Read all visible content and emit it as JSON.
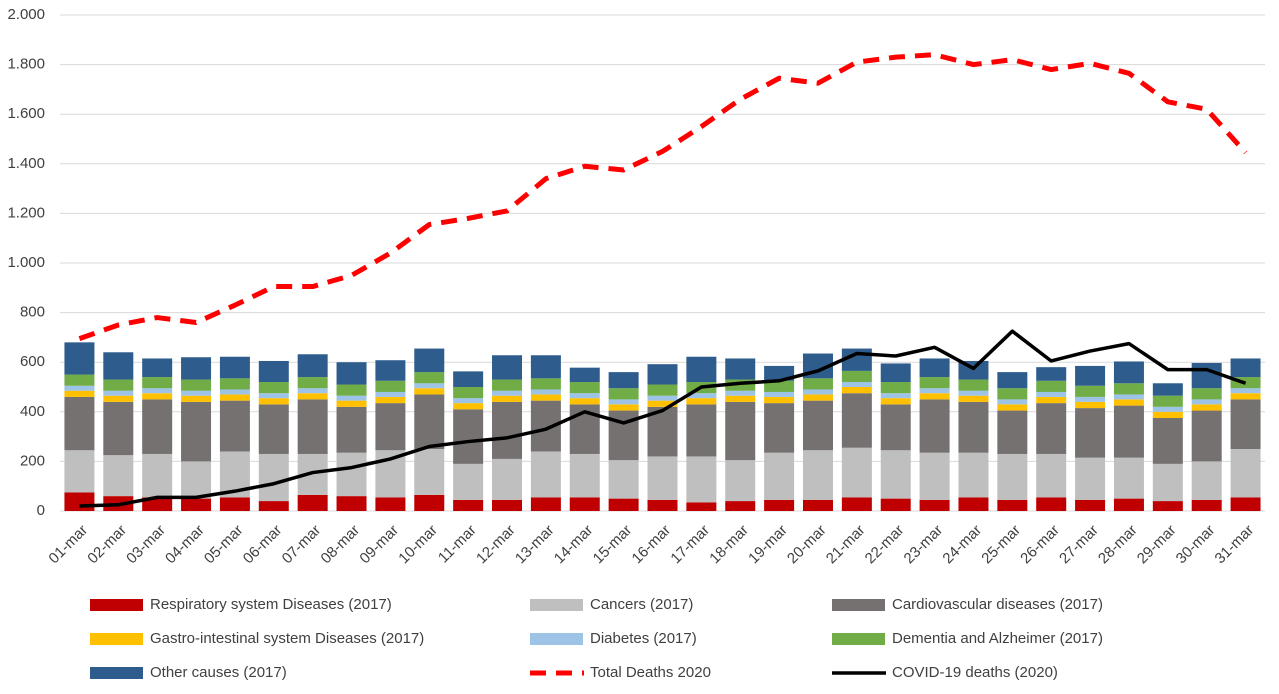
{
  "chart_data": {
    "type": "bar",
    "stacked": true,
    "categories": [
      "01-mar",
      "02-mar",
      "03-mar",
      "04-mar",
      "05-mar",
      "06-mar",
      "07-mar",
      "08-mar",
      "09-mar",
      "10-mar",
      "11-mar",
      "12-mar",
      "13-mar",
      "14-mar",
      "15-mar",
      "16-mar",
      "17-mar",
      "18-mar",
      "19-mar",
      "20-mar",
      "21-mar",
      "22-mar",
      "23-mar",
      "24-mar",
      "25-mar",
      "26-mar",
      "27-mar",
      "28-mar",
      "29-mar",
      "30-mar",
      "31-mar"
    ],
    "ylim": [
      0,
      2000
    ],
    "yticks": [
      0,
      200,
      400,
      600,
      800,
      {
        "value": 1000,
        "label": "1.000"
      },
      {
        "value": 1200,
        "label": "1.200"
      },
      {
        "value": 1400,
        "label": "1.400"
      },
      {
        "value": 1600,
        "label": "1.600"
      },
      {
        "value": 1800,
        "label": "1.800"
      },
      {
        "value": 2000,
        "label": "2.000"
      }
    ],
    "grid": true,
    "series": [
      {
        "name": "Respiratory system Diseases (2017)",
        "color": "#c00000",
        "type": "bar",
        "values": [
          75,
          60,
          55,
          50,
          55,
          40,
          65,
          60,
          55,
          65,
          45,
          45,
          55,
          55,
          50,
          45,
          35,
          40,
          45,
          45,
          55,
          50,
          45,
          55,
          45,
          55,
          45,
          50,
          40,
          45,
          55
        ]
      },
      {
        "name": "Cancers (2017)",
        "color": "#bfbfbf",
        "type": "bar",
        "values": [
          170,
          165,
          175,
          150,
          185,
          190,
          165,
          175,
          190,
          185,
          145,
          165,
          185,
          175,
          155,
          175,
          185,
          165,
          190,
          200,
          200,
          195,
          190,
          180,
          185,
          175,
          170,
          165,
          150,
          155,
          195
        ]
      },
      {
        "name": "Cardiovascular diseases (2017)",
        "color": "#757171",
        "type": "bar",
        "values": [
          215,
          215,
          220,
          240,
          205,
          200,
          220,
          185,
          190,
          220,
          220,
          230,
          205,
          200,
          200,
          200,
          210,
          235,
          200,
          200,
          220,
          185,
          215,
          205,
          175,
          205,
          200,
          210,
          185,
          205,
          200
        ]
      },
      {
        "name": "Gastro-intestinal system Diseases (2017)",
        "color": "#ffc000",
        "type": "bar",
        "values": [
          25,
          25,
          25,
          25,
          25,
          25,
          25,
          25,
          25,
          25,
          25,
          25,
          25,
          25,
          25,
          25,
          25,
          25,
          25,
          25,
          25,
          25,
          25,
          25,
          25,
          25,
          25,
          25,
          25,
          25,
          25
        ]
      },
      {
        "name": "Diabetes (2017)",
        "color": "#9dc3e6",
        "type": "bar",
        "values": [
          20,
          20,
          20,
          20,
          20,
          20,
          20,
          20,
          20,
          20,
          20,
          20,
          20,
          20,
          20,
          20,
          20,
          20,
          20,
          20,
          20,
          20,
          20,
          20,
          20,
          20,
          20,
          20,
          20,
          20,
          20
        ]
      },
      {
        "name": "Dementia and Alzheimer (2017)",
        "color": "#70ad47",
        "type": "bar",
        "values": [
          45,
          45,
          45,
          45,
          45,
          45,
          45,
          45,
          45,
          45,
          45,
          45,
          45,
          45,
          45,
          45,
          45,
          45,
          45,
          45,
          45,
          45,
          45,
          45,
          45,
          45,
          45,
          45,
          45,
          45,
          45
        ]
      },
      {
        "name": "Other causes (2017)",
        "color": "#2e5d8d",
        "type": "bar",
        "values": [
          130,
          110,
          75,
          90,
          87,
          85,
          92,
          90,
          83,
          95,
          63,
          98,
          93,
          58,
          65,
          82,
          102,
          85,
          60,
          100,
          90,
          75,
          75,
          75,
          65,
          55,
          80,
          88,
          50,
          102,
          75
        ]
      },
      {
        "name": "Total Deaths 2020",
        "color": "#ff0000",
        "type": "line",
        "dashed": true,
        "values": [
          695,
          750,
          780,
          760,
          830,
          905,
          905,
          950,
          1040,
          1155,
          1180,
          1210,
          1340,
          1390,
          1375,
          1450,
          1550,
          1660,
          1745,
          1725,
          1810,
          1830,
          1840,
          1800,
          1820,
          1780,
          1805,
          1765,
          1650,
          1620,
          1445
        ]
      },
      {
        "name": "COVID-19 deaths (2020)",
        "color": "#000000",
        "type": "line",
        "dashed": false,
        "values": [
          20,
          25,
          55,
          55,
          80,
          110,
          155,
          175,
          210,
          260,
          280,
          295,
          330,
          400,
          355,
          405,
          500,
          515,
          525,
          565,
          635,
          625,
          660,
          575,
          725,
          605,
          645,
          675,
          570,
          570,
          515
        ]
      }
    ]
  }
}
